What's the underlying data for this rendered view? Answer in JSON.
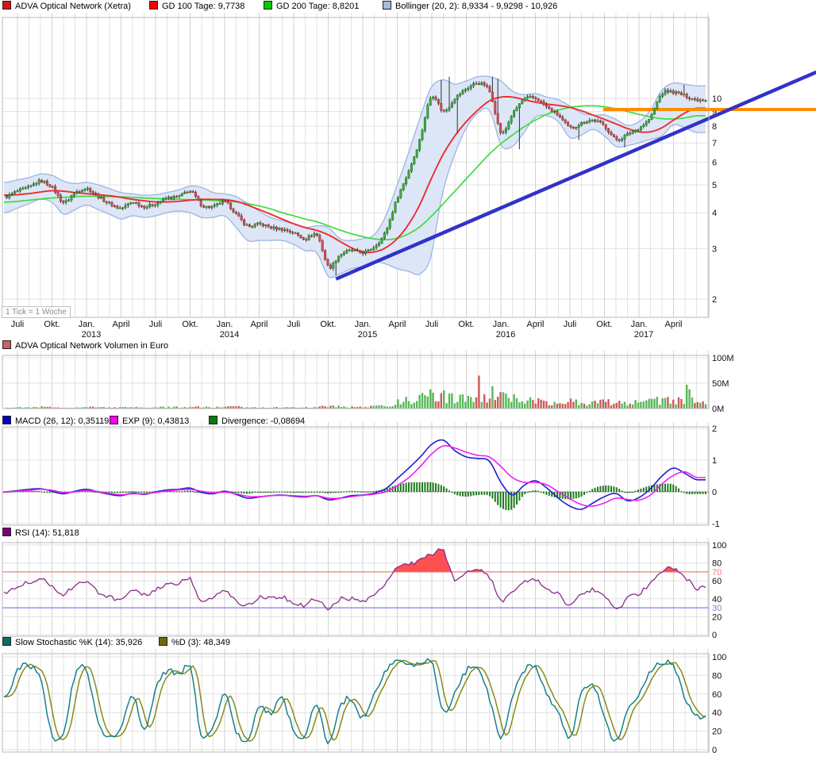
{
  "legends": {
    "price": {
      "items": [
        {
          "label": "ADVA Optical Network (Xetra)",
          "color": "#dd1111"
        },
        {
          "label": "GD 100 Tage: 9,7738",
          "color": "#ff0000"
        },
        {
          "label": "GD 200 Tage: 8,8201",
          "color": "#00cc00"
        },
        {
          "label": "Bollinger (20, 2): 8,9334 - 9,9298 - 10,926",
          "color": "#a8bcdc"
        }
      ]
    },
    "volume": {
      "items": [
        {
          "label": "ADVA Optical Network Volumen in Euro",
          "color": "#cd6060"
        }
      ]
    },
    "macd": {
      "items": [
        {
          "label": "MACD (26, 12): 0,35119",
          "color": "#0000cc"
        },
        {
          "label": "EXP (9): 0,43813",
          "color": "#ff00ff"
        },
        {
          "label": "Divergence: -0,08694",
          "color": "#0d7a0d"
        }
      ]
    },
    "rsi": {
      "items": [
        {
          "label": "RSI (14): 51,818",
          "color": "#7a007a"
        }
      ]
    },
    "stoch": {
      "items": [
        {
          "label": "Slow Stochastic %K (14): 35,926",
          "color": "#0d6a6a"
        },
        {
          "label": "%D (3): 48,349",
          "color": "#6a6a0d"
        }
      ]
    }
  },
  "x_axis": {
    "tick_unit": "1 Tick = 1 Woche",
    "ticks": [
      {
        "m": 0,
        "label": "Juli"
      },
      {
        "m": 3,
        "label": "Okt."
      },
      {
        "m": 6,
        "label": "Jan.",
        "year": "2013"
      },
      {
        "m": 9,
        "label": "April"
      },
      {
        "m": 12,
        "label": "Juli"
      },
      {
        "m": 15,
        "label": "Okt."
      },
      {
        "m": 18,
        "label": "Jan.",
        "year": "2014"
      },
      {
        "m": 21,
        "label": "April"
      },
      {
        "m": 24,
        "label": "Juli"
      },
      {
        "m": 27,
        "label": "Okt."
      },
      {
        "m": 30,
        "label": "Jan.",
        "year": "2015"
      },
      {
        "m": 33,
        "label": "April"
      },
      {
        "m": 36,
        "label": "Juli"
      },
      {
        "m": 39,
        "label": "Okt."
      },
      {
        "m": 42,
        "label": "Jan.",
        "year": "2016"
      },
      {
        "m": 45,
        "label": "April"
      },
      {
        "m": 48,
        "label": "Juli"
      },
      {
        "m": 51,
        "label": "Okt."
      },
      {
        "m": 54,
        "label": "Jan.",
        "year": "2017"
      },
      {
        "m": 57,
        "label": "April"
      }
    ]
  },
  "chart_data": [
    {
      "id": "price",
      "type": "candlestick",
      "title": "ADVA Optical Network (Xetra)",
      "scale": "log",
      "ylim": [
        1.73,
        19.2
      ],
      "yticks": [
        2,
        3,
        4,
        5,
        6,
        7,
        8,
        9,
        10
      ],
      "x_start": "2012-06",
      "x_end": "2017-06",
      "x_step": "month",
      "gd100_last": 9.7738,
      "gd200_last": 8.8201,
      "bollinger_last": [
        8.9334,
        9.9298,
        10.926
      ],
      "series": {
        "close_monthly": [
          4.55,
          4.75,
          4.9,
          5.15,
          4.9,
          4.35,
          4.7,
          4.85,
          4.55,
          4.3,
          4.15,
          4.35,
          4.2,
          4.3,
          4.5,
          4.55,
          4.75,
          4.25,
          4.2,
          4.35,
          3.95,
          3.6,
          3.65,
          3.55,
          3.5,
          3.4,
          3.25,
          3.35,
          2.6,
          2.85,
          2.95,
          2.9,
          3.05,
          3.45,
          4.5,
          5.6,
          7.3,
          10.2,
          9.0,
          10.0,
          10.8,
          11.3,
          10.6,
          7.6,
          8.8,
          9.9,
          10.0,
          9.3,
          8.7,
          7.9,
          8.2,
          8.4,
          8.0,
          7.2,
          7.5,
          7.9,
          8.6,
          10.4,
          10.5,
          10.2,
          9.9
        ],
        "gd100_monthly": [
          4.6,
          4.62,
          4.66,
          4.72,
          4.77,
          4.75,
          4.7,
          4.66,
          4.62,
          4.58,
          4.52,
          4.45,
          4.4,
          4.36,
          4.36,
          4.38,
          4.42,
          4.45,
          4.45,
          4.44,
          4.38,
          4.25,
          4.1,
          3.95,
          3.8,
          3.66,
          3.55,
          3.47,
          3.35,
          3.18,
          3.02,
          2.92,
          2.92,
          3.02,
          3.25,
          3.65,
          4.3,
          5.3,
          6.4,
          7.4,
          8.3,
          9.1,
          9.8,
          10.1,
          10.1,
          9.9,
          9.7,
          9.55,
          9.45,
          9.3,
          9.05,
          8.75,
          8.45,
          8.15,
          7.85,
          7.65,
          7.65,
          7.9,
          8.4,
          8.9,
          9.25
        ],
        "gd200_monthly": [
          4.35,
          4.38,
          4.42,
          4.46,
          4.5,
          4.52,
          4.55,
          4.56,
          4.56,
          4.55,
          4.54,
          4.52,
          4.5,
          4.48,
          4.46,
          4.45,
          4.44,
          4.43,
          4.41,
          4.39,
          4.36,
          4.3,
          4.22,
          4.12,
          4.0,
          3.9,
          3.8,
          3.72,
          3.6,
          3.48,
          3.38,
          3.3,
          3.24,
          3.22,
          3.26,
          3.38,
          3.58,
          3.9,
          4.3,
          4.75,
          5.25,
          5.8,
          6.4,
          6.95,
          7.45,
          7.95,
          8.4,
          8.8,
          9.1,
          9.3,
          9.4,
          9.42,
          9.35,
          9.2,
          9.0,
          8.8,
          8.62,
          8.5,
          8.48,
          8.55,
          8.7
        ],
        "bollinger_upper_monthly": [
          5.1,
          5.2,
          5.3,
          5.45,
          5.4,
          5.15,
          5.05,
          5.1,
          5.0,
          4.85,
          4.7,
          4.65,
          4.6,
          4.62,
          4.7,
          4.8,
          4.95,
          4.9,
          4.7,
          4.65,
          4.55,
          4.3,
          4.05,
          3.85,
          3.75,
          3.65,
          3.55,
          3.6,
          3.55,
          3.25,
          3.2,
          3.25,
          3.35,
          3.9,
          5.0,
          6.5,
          8.6,
          11.0,
          11.6,
          11.2,
          11.5,
          11.9,
          11.9,
          11.5,
          10.6,
          10.3,
          10.4,
          10.1,
          9.9,
          9.4,
          8.9,
          8.75,
          8.75,
          8.45,
          8.05,
          8.3,
          9.1,
          10.7,
          11.3,
          11.2,
          11.05
        ],
        "bollinger_lower_monthly": [
          4.0,
          4.15,
          4.3,
          4.45,
          4.35,
          3.95,
          4.1,
          4.25,
          4.1,
          3.95,
          3.8,
          3.9,
          3.85,
          3.9,
          4.0,
          4.05,
          4.0,
          3.85,
          3.85,
          3.9,
          3.55,
          3.2,
          3.2,
          3.2,
          3.2,
          3.1,
          2.95,
          2.9,
          2.4,
          2.45,
          2.55,
          2.6,
          2.7,
          2.65,
          2.55,
          2.5,
          2.45,
          2.9,
          4.8,
          6.4,
          7.9,
          8.9,
          9.1,
          6.9,
          6.8,
          7.6,
          8.6,
          8.7,
          8.3,
          7.3,
          7.45,
          7.8,
          7.4,
          6.8,
          6.85,
          7.0,
          7.2,
          7.4,
          8.1,
          7.9,
          7.6
        ]
      },
      "wick_events": [
        {
          "i": 123,
          "low": 2.42
        },
        {
          "i": 162,
          "high": 11.6
        },
        {
          "i": 165,
          "high": 11.9
        },
        {
          "i": 168,
          "low": 7.55
        },
        {
          "i": 181,
          "high": 11.9
        },
        {
          "i": 183,
          "high": 11.7
        },
        {
          "i": 191,
          "low": 6.65
        },
        {
          "i": 213,
          "low": 7.15
        },
        {
          "i": 230,
          "low": 6.75
        },
        {
          "i": 252,
          "high": 11.15
        }
      ],
      "trendline": {
        "from_week": 123,
        "from_price": 2.35,
        "to_week": 301,
        "to_price": 12.34,
        "color": "#3232c8"
      },
      "hline": {
        "price": 9.15,
        "from_week": 222,
        "to_week": 301,
        "color": "#ff8c00"
      },
      "colors": {
        "candle_up": "#3fae3f",
        "candle_up_border": "#1d7a1d",
        "candle_down": "#cf5454",
        "candle_down_border": "#9e2b2b",
        "wick": "#333333",
        "gd100": "#ee2c2c",
        "gd200": "#3ddc3d",
        "bollinger_fill": "#dce6f7",
        "bollinger_edge": "#9db5e0"
      }
    },
    {
      "id": "volume",
      "type": "bar",
      "title": "ADVA Optical Network Volumen in Euro",
      "ylim": [
        0,
        100
      ],
      "yticks": [
        0,
        50,
        100
      ],
      "ytick_labels": [
        "0M",
        "50M",
        "100M"
      ],
      "series": {
        "volume_monthly": [
          2.0,
          2.2,
          2.0,
          2.8,
          2.5,
          2.2,
          1.8,
          2.6,
          2.8,
          2.2,
          2.0,
          2.4,
          2.0,
          2.2,
          3.0,
          2.6,
          3.8,
          3.0,
          2.4,
          3.0,
          3.4,
          3.0,
          2.6,
          2.2,
          2.0,
          2.2,
          2.4,
          2.2,
          5.5,
          4.0,
          3.2,
          3.0,
          4.0,
          6.0,
          12.0,
          16.0,
          20.0,
          26.0,
          22.0,
          18.0,
          24.0,
          22.0,
          18.0,
          22.0,
          19.0,
          17.0,
          15.0,
          13.0,
          12.0,
          15.0,
          11.0,
          11.0,
          12.0,
          14.0,
          12.0,
          12.0,
          13.0,
          17.0,
          16.0,
          18.0,
          13.0
        ]
      },
      "spikes": [
        {
          "i": 163,
          "v": 36,
          "dir": "up"
        },
        {
          "i": 166,
          "v": 30,
          "dir": "up"
        },
        {
          "i": 176,
          "v": 65,
          "dir": "down"
        },
        {
          "i": 181,
          "v": 44,
          "dir": "up"
        },
        {
          "i": 253,
          "v": 47,
          "dir": "up"
        },
        {
          "i": 254,
          "v": 38,
          "dir": "up"
        }
      ],
      "colors": {
        "up": "#57b957",
        "down": "#cc5b5b"
      }
    },
    {
      "id": "macd",
      "type": "line+histogram",
      "macd_last": 0.35119,
      "exp_last": 0.43813,
      "divergence_last": -0.08694,
      "ylim": [
        -1.1,
        2.05
      ],
      "yticks": [
        -1,
        0,
        1,
        2
      ],
      "series": {
        "macd_monthly": [
          0.0,
          0.04,
          0.08,
          0.1,
          0.02,
          -0.06,
          0.02,
          0.08,
          0.0,
          -0.08,
          -0.12,
          -0.04,
          -0.08,
          0.0,
          0.06,
          0.08,
          0.12,
          -0.02,
          -0.06,
          0.02,
          -0.08,
          -0.2,
          -0.16,
          -0.12,
          -0.1,
          -0.14,
          -0.16,
          -0.12,
          -0.25,
          -0.2,
          -0.12,
          -0.1,
          -0.04,
          0.1,
          0.42,
          0.75,
          1.1,
          1.5,
          1.63,
          1.3,
          1.1,
          1.05,
          0.97,
          0.3,
          -0.1,
          0.2,
          0.35,
          0.12,
          -0.2,
          -0.45,
          -0.55,
          -0.35,
          -0.15,
          -0.05,
          -0.28,
          -0.18,
          0.1,
          0.5,
          0.75,
          0.58,
          0.38
        ],
        "exp_monthly": [
          0.0,
          0.02,
          0.05,
          0.08,
          0.05,
          -0.02,
          0.0,
          0.04,
          0.01,
          -0.05,
          -0.09,
          -0.06,
          -0.06,
          -0.02,
          0.03,
          0.06,
          0.08,
          0.02,
          -0.03,
          -0.01,
          -0.06,
          -0.14,
          -0.15,
          -0.12,
          -0.11,
          -0.12,
          -0.14,
          -0.12,
          -0.2,
          -0.2,
          -0.15,
          -0.11,
          -0.07,
          0.0,
          0.2,
          0.45,
          0.8,
          1.2,
          1.45,
          1.38,
          1.25,
          1.15,
          1.1,
          0.8,
          0.45,
          0.3,
          0.3,
          0.22,
          0.0,
          -0.22,
          -0.4,
          -0.45,
          -0.35,
          -0.2,
          -0.24,
          -0.26,
          -0.1,
          0.25,
          0.52,
          0.63,
          0.45
        ]
      },
      "colors": {
        "macd": "#2020cc",
        "signal": "#f020f0",
        "histogram": "#1d7a1d",
        "zero": "#444444"
      }
    },
    {
      "id": "rsi",
      "type": "line",
      "rsi_last": 51.818,
      "ylim": [
        0,
        100
      ],
      "yticks": [
        0,
        20,
        40,
        60,
        80,
        100
      ],
      "overbought": 70,
      "oversold": 30,
      "series": {
        "rsi_monthly": [
          47,
          55,
          58,
          62,
          55,
          45,
          55,
          58,
          48,
          42,
          38,
          48,
          44,
          50,
          55,
          57,
          62,
          36,
          42,
          48,
          38,
          32,
          42,
          40,
          42,
          36,
          33,
          40,
          28,
          40,
          40,
          36,
          44,
          56,
          74,
          79,
          82,
          90,
          93,
          62,
          68,
          71,
          65,
          38,
          48,
          58,
          60,
          52,
          45,
          32,
          45,
          50,
          44,
          29,
          40,
          46,
          58,
          71,
          73,
          64,
          52
        ]
      },
      "colors": {
        "line": "#8a2d8a",
        "overbought_fill": "#ff5050",
        "line70": "#f08080",
        "line30": "#8080e8"
      }
    },
    {
      "id": "stochastic",
      "type": "line",
      "k_last": 35.926,
      "d_last": 48.349,
      "ylim": [
        0,
        100
      ],
      "yticks": [
        0,
        20,
        40,
        60,
        80,
        100
      ],
      "series": {
        "k_monthly": [
          55,
          85,
          90,
          75,
          15,
          20,
          80,
          85,
          30,
          15,
          25,
          60,
          20,
          65,
          85,
          80,
          88,
          15,
          25,
          60,
          20,
          10,
          45,
          40,
          55,
          20,
          15,
          50,
          8,
          45,
          55,
          35,
          60,
          85,
          95,
          90,
          93,
          95,
          40,
          60,
          85,
          90,
          55,
          12,
          55,
          85,
          88,
          60,
          40,
          12,
          60,
          70,
          35,
          10,
          45,
          60,
          85,
          92,
          90,
          55,
          36
        ]
      },
      "colors": {
        "k": "#17808a",
        "d": "#8a8a17"
      }
    }
  ]
}
